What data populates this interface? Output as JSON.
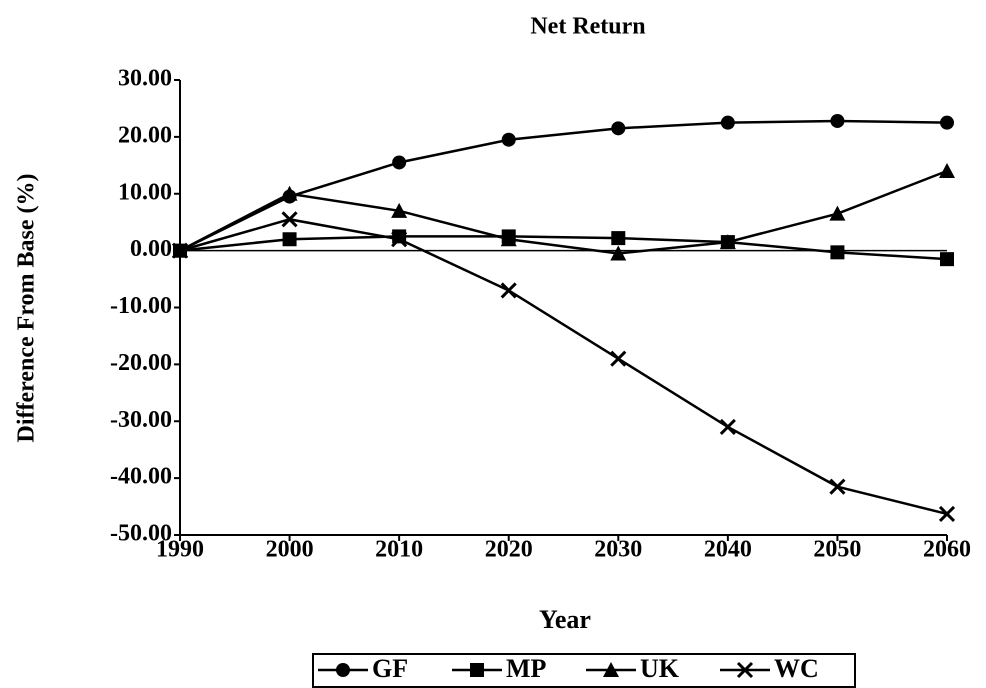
{
  "chart_data": {
    "type": "line",
    "title": "Net Return",
    "xlabel": "Year",
    "ylabel": "Difference From Base (%)",
    "x": [
      1990,
      2000,
      2010,
      2020,
      2030,
      2040,
      2050,
      2060
    ],
    "series": [
      {
        "name": "GF",
        "color": "#000000",
        "marker": "circle",
        "values": [
          0,
          9.5,
          15.5,
          19.5,
          21.5,
          22.5,
          22.8,
          22.5
        ]
      },
      {
        "name": "MP",
        "color": "#000000",
        "marker": "square",
        "values": [
          0,
          2,
          2.5,
          2.5,
          2.2,
          1.5,
          -0.3,
          -1.5
        ]
      },
      {
        "name": "UK",
        "color": "#000000",
        "marker": "triangle",
        "values": [
          0,
          10,
          7,
          2,
          -0.5,
          1.5,
          6.5,
          14
        ]
      },
      {
        "name": "WC",
        "color": "#000000",
        "marker": "x",
        "values": [
          0,
          5.5,
          2,
          -7,
          -19,
          -31,
          -41.5,
          -46.3
        ]
      }
    ],
    "xlim": [
      1990,
      2060
    ],
    "xticks": [
      1990,
      2000,
      2010,
      2020,
      2030,
      2040,
      2050,
      2060
    ],
    "ylim": [
      -50,
      30
    ],
    "yticks": [
      {
        "value": -50,
        "label": "-50.00"
      },
      {
        "value": -40,
        "label": "-40.00"
      },
      {
        "value": -30,
        "label": "-30.00"
      },
      {
        "value": -20,
        "label": "-20.00"
      },
      {
        "value": -10,
        "label": "-10.00"
      },
      {
        "value": 0,
        "label": "0.00"
      },
      {
        "value": 10,
        "label": "10.00"
      },
      {
        "value": 20,
        "label": "20.00"
      },
      {
        "value": 30,
        "label": "30.00"
      }
    ],
    "legend": "bottom",
    "grid": false
  }
}
